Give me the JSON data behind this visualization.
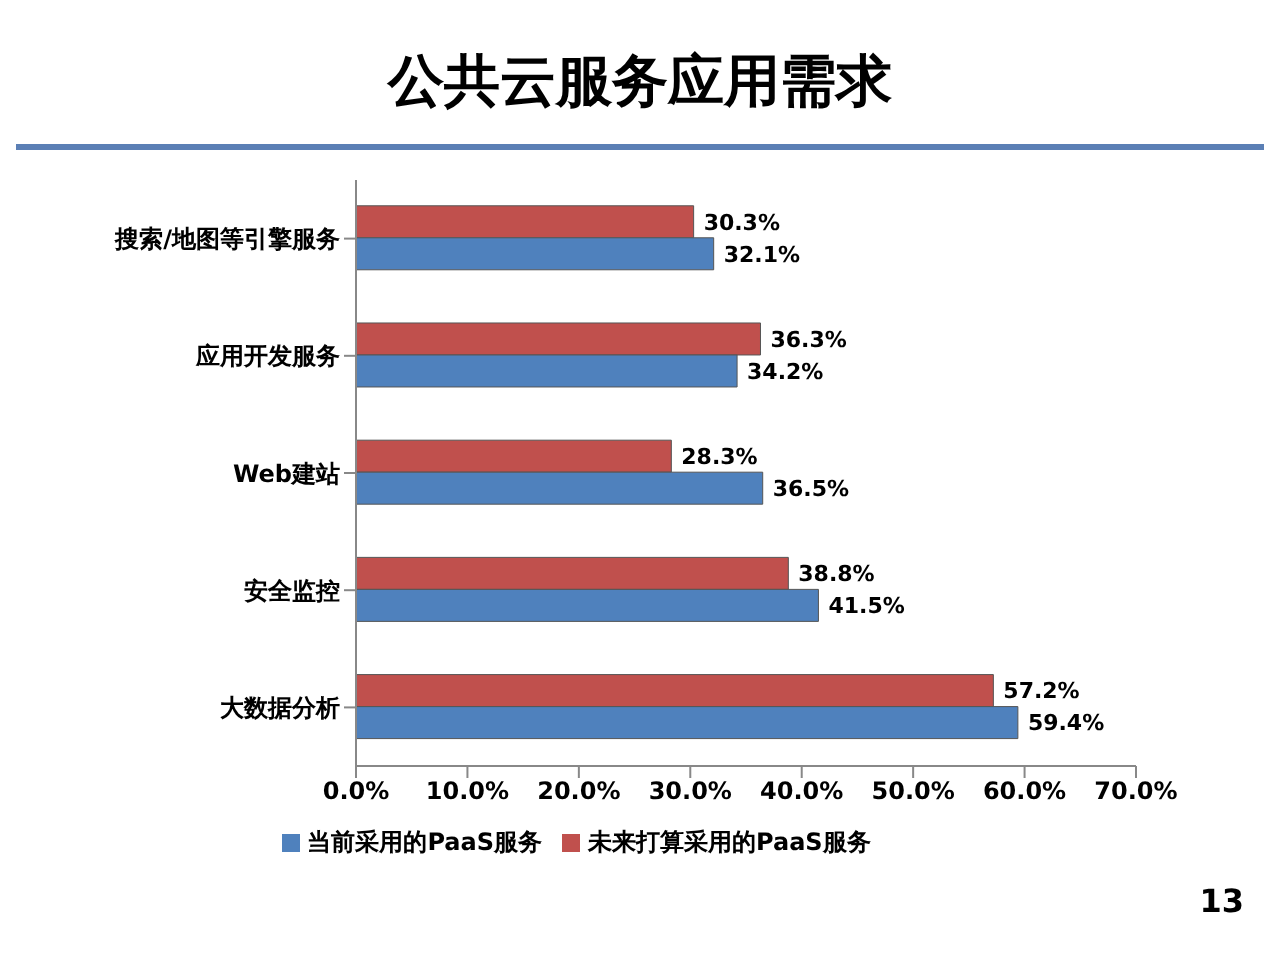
{
  "chart_data": {
    "type": "bar",
    "orientation": "horizontal",
    "title": "公共云服务应用需求",
    "categories": [
      "搜索/地图等引擎服务",
      "应用开发服务",
      "Web建站",
      "安全监控",
      "大数据分析"
    ],
    "series": [
      {
        "name": "未来打算采用的PaaS服务",
        "color": "#c0504d",
        "values": [
          30.3,
          36.3,
          28.3,
          38.8,
          57.2
        ],
        "value_labels": [
          "30.3%",
          "36.3%",
          "28.3%",
          "38.8%",
          "57.2%"
        ]
      },
      {
        "name": "当前采用的PaaS服务",
        "color": "#4f81bd",
        "values": [
          32.1,
          34.2,
          36.5,
          41.5,
          59.4
        ],
        "value_labels": [
          "32.1%",
          "34.2%",
          "36.5%",
          "41.5%",
          "59.4%"
        ]
      }
    ],
    "xlim": [
      0,
      70
    ],
    "xticks": [
      {
        "value": 0,
        "label": "0.0%"
      },
      {
        "value": 10,
        "label": "10.0%"
      },
      {
        "value": 20,
        "label": "20.0%"
      },
      {
        "value": 30,
        "label": "30.0%"
      },
      {
        "value": 40,
        "label": "40.0%"
      },
      {
        "value": 50,
        "label": "50.0%"
      },
      {
        "value": 60,
        "label": "60.0%"
      },
      {
        "value": 70,
        "label": "70.0%"
      }
    ],
    "legend": "bottom",
    "annotations": [
      "13"
    ]
  }
}
